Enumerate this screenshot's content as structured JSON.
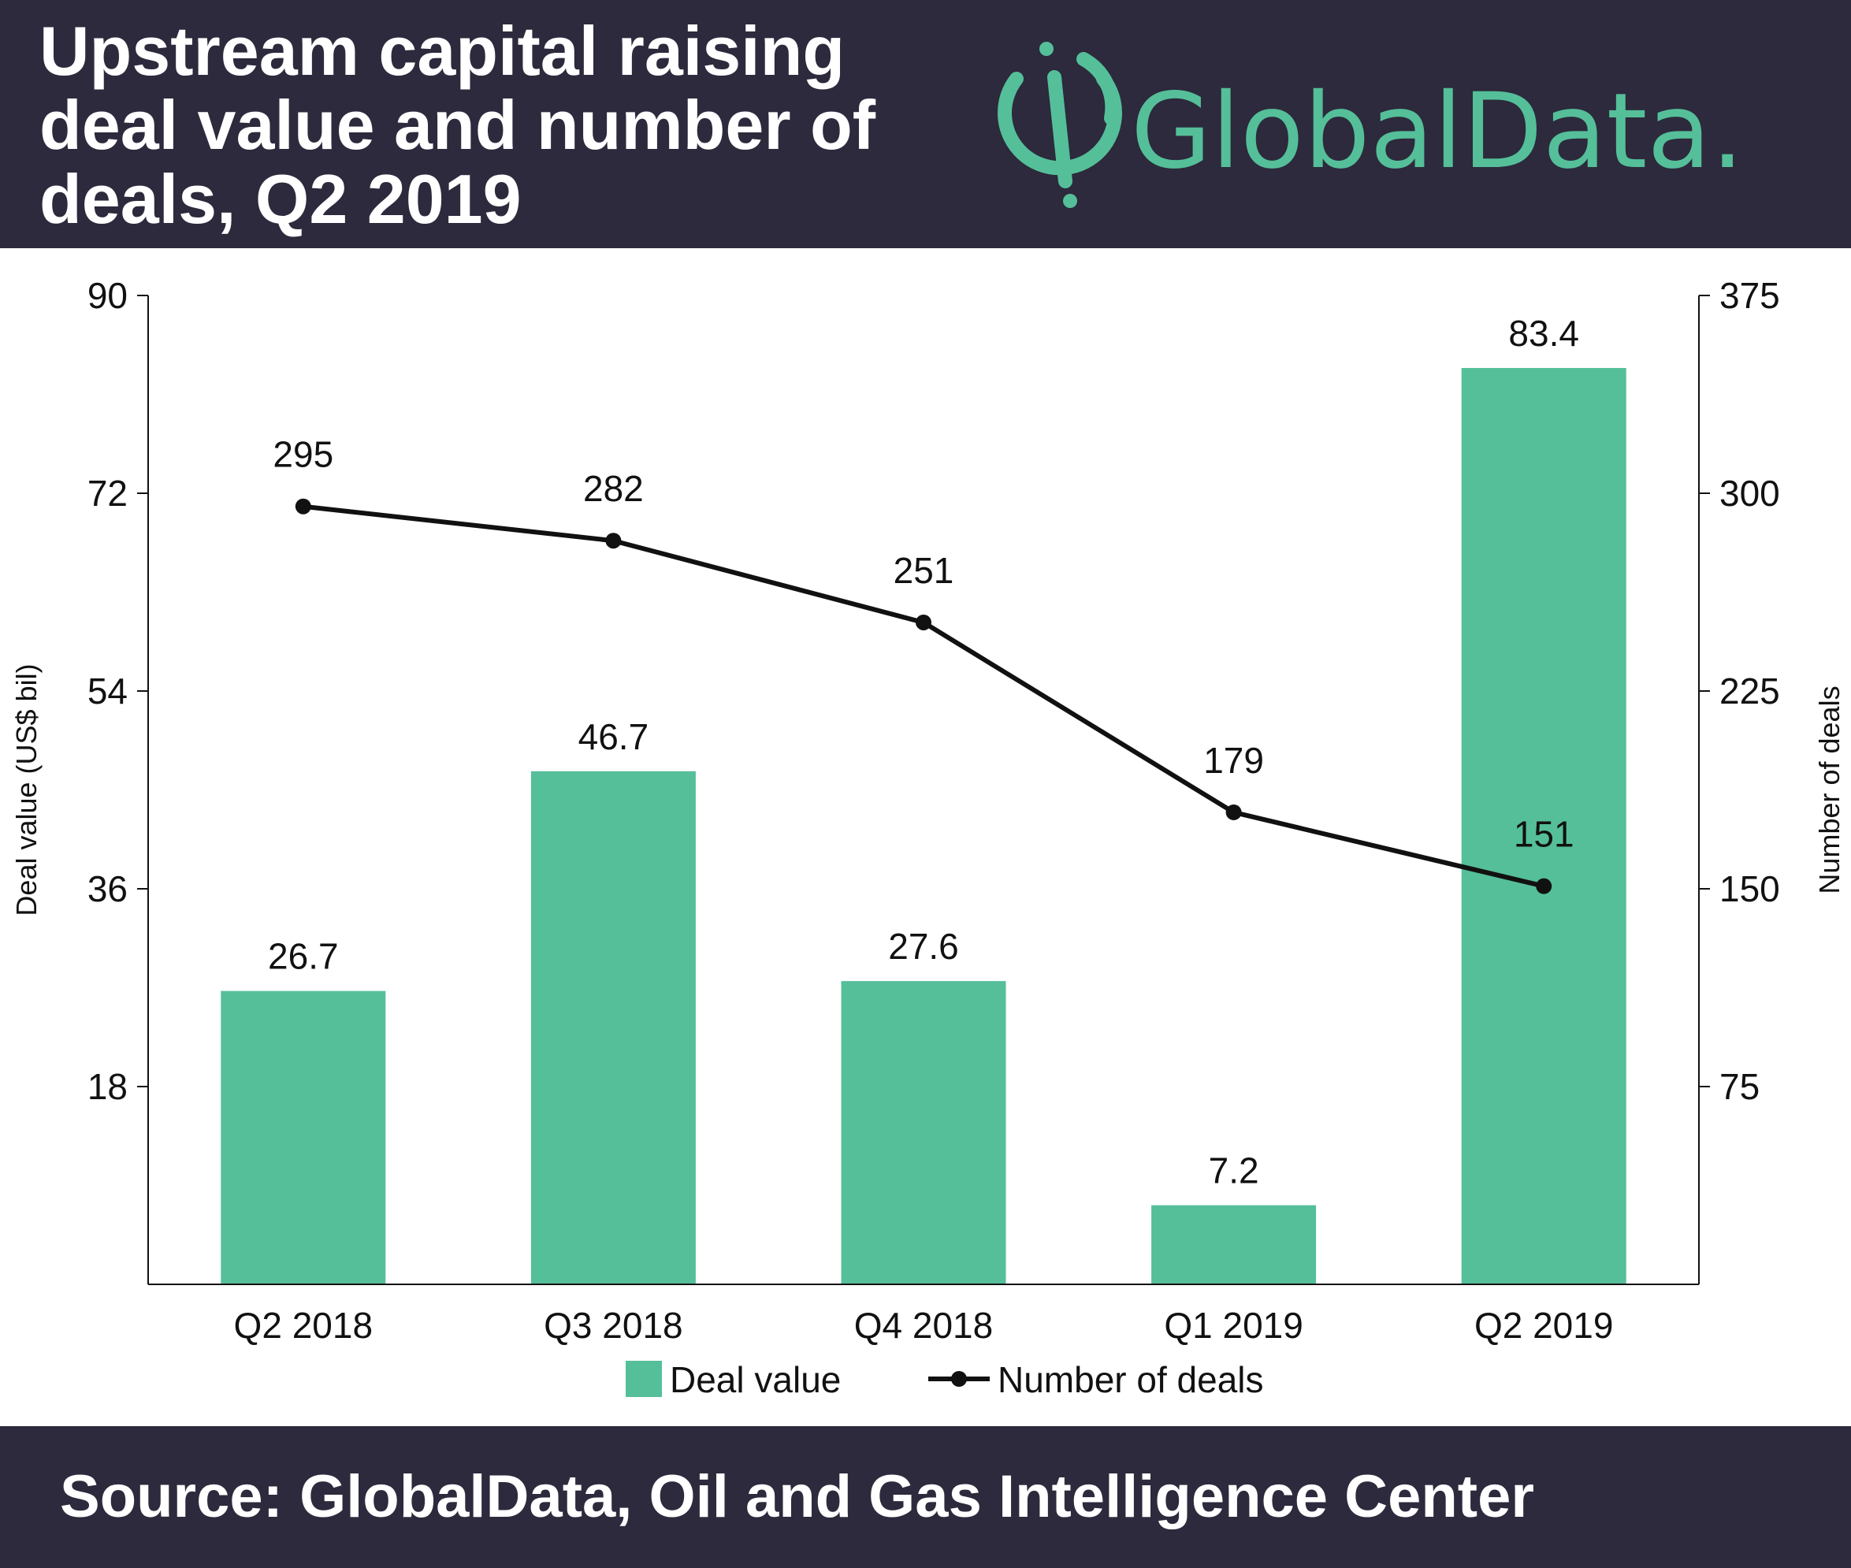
{
  "header": {
    "title_lines": [
      "Upstream capital raising",
      "deal value and number of",
      "deals, Q2 2019"
    ],
    "logo_text": "GlobalData."
  },
  "footer": {
    "source": "Source:  GlobalData, Oil and Gas Intelligence Center"
  },
  "colors": {
    "bar": "#55bf99",
    "line": "#111111",
    "header_bg": "#2c2a3c",
    "highlight_label": "#ffffff"
  },
  "chart_data": {
    "type": "bar",
    "title": "Upstream capital raising deal value and number of deals, Q2 2019",
    "categories": [
      "Q2 2018",
      "Q3 2018",
      "Q4 2018",
      "Q1 2019",
      "Q2 2019"
    ],
    "series": [
      {
        "name": "Deal value",
        "type": "bar",
        "axis": "left",
        "values": [
          26.7,
          46.7,
          27.6,
          7.2,
          83.4
        ],
        "labels": [
          "26.7",
          "46.7",
          "27.6",
          "7.2",
          "83.4"
        ]
      },
      {
        "name": "Number of deals",
        "type": "line",
        "axis": "right",
        "values": [
          295,
          282,
          251,
          179,
          151
        ],
        "labels": [
          "295",
          "282",
          "251",
          "179",
          "151"
        ]
      }
    ],
    "y_left": {
      "label": "Deal value (US$ bil)",
      "range": [
        0,
        90
      ],
      "ticks": [
        18,
        36,
        54,
        72,
        90
      ],
      "tick_labels": [
        "18",
        "36",
        "54",
        "72",
        "90"
      ]
    },
    "y_right": {
      "label": "Number of deals",
      "range": [
        0,
        375
      ],
      "ticks": [
        75,
        150,
        225,
        300,
        375
      ],
      "tick_labels": [
        "75",
        "150",
        "225",
        "300",
        "375"
      ]
    },
    "grid": false,
    "legend": "bottom"
  }
}
